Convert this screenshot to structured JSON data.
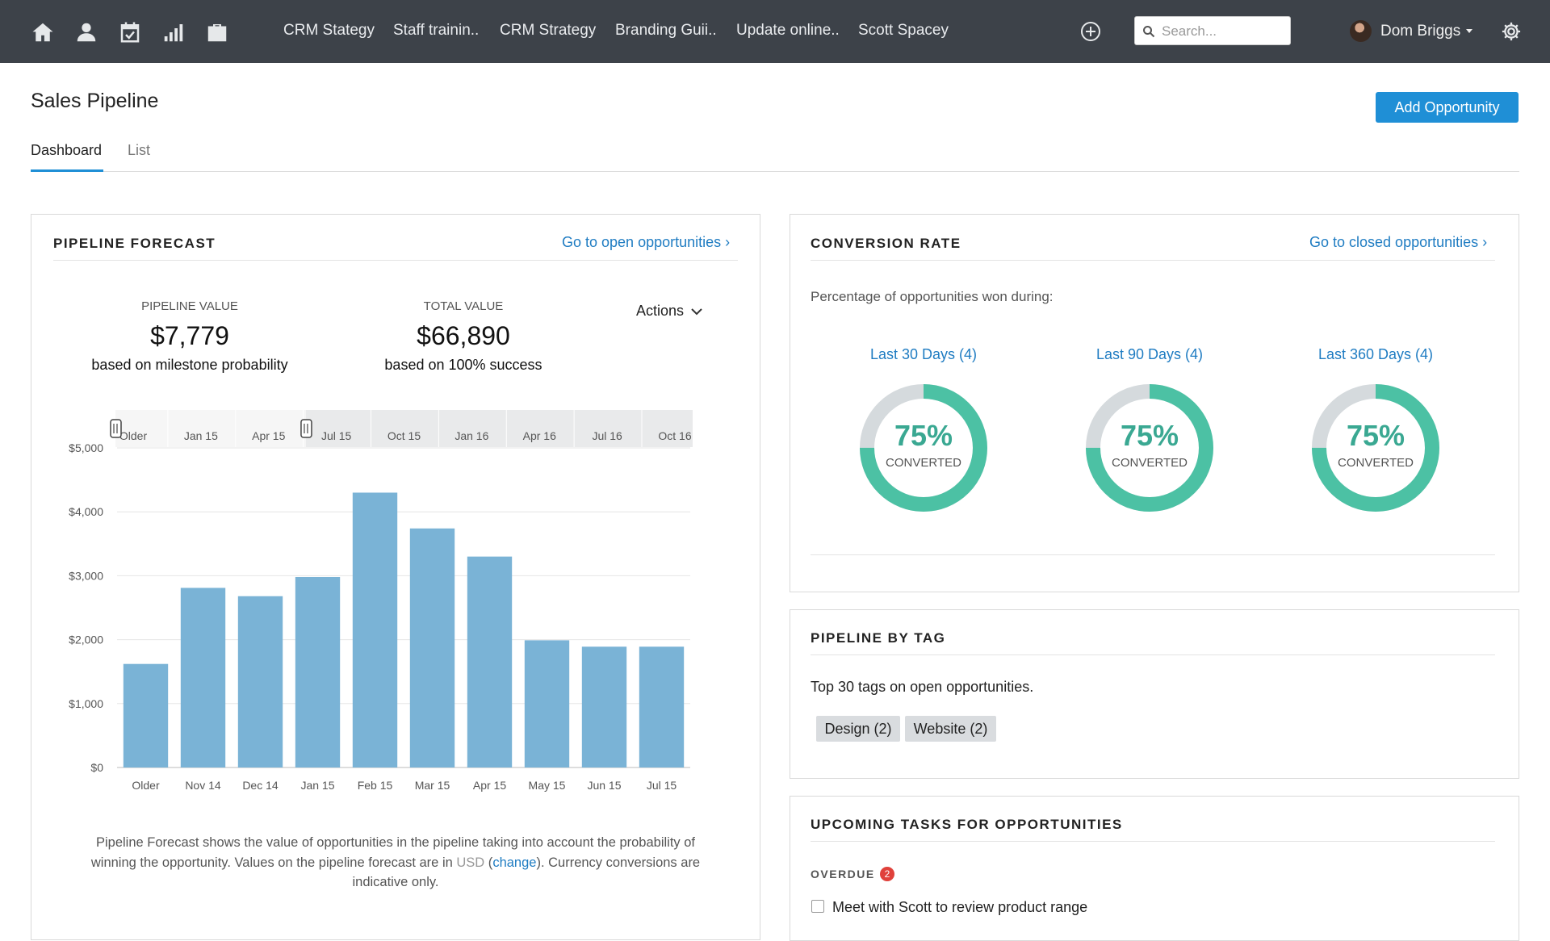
{
  "nav": {
    "icons": [
      "home-icon",
      "contacts-icon",
      "calendar-icon",
      "reports-icon",
      "cases-icon"
    ],
    "open_tabs": [
      "CRM Stategy",
      "Staff trainin..",
      "CRM Strategy",
      "Branding Guii..",
      "Update online..",
      "Scott Spacey"
    ],
    "search_placeholder": "Search...",
    "user_name": "Dom Briggs"
  },
  "header": {
    "title": "Sales Pipeline",
    "add_button": "Add Opportunity",
    "tabs": [
      "Dashboard",
      "List"
    ],
    "active_tab": "Dashboard"
  },
  "pipeline_forecast": {
    "title": "PIPELINE FORECAST",
    "link": "Go to open opportunities ›",
    "pipeline_value_label": "PIPELINE VALUE",
    "pipeline_value": "$7,779",
    "pipeline_value_sub": "based on milestone probability",
    "total_value_label": "TOTAL VALUE",
    "total_value": "$66,890",
    "total_value_sub": "based on 100% success",
    "actions_label": "Actions",
    "footnote_pre": "Pipeline Forecast shows the value of opportunities in the pipeline taking into account the probability of winning the opportunity. Values on the pipeline forecast are in ",
    "footnote_currency": "USD",
    "footnote_open": " (",
    "footnote_change": "change",
    "footnote_post": "). Currency conversions are indicative only."
  },
  "chart_data": {
    "type": "bar",
    "categories": [
      "Older",
      "Nov 14",
      "Dec 14",
      "Jan 15",
      "Feb 15",
      "Mar 15",
      "Apr 15",
      "May 15",
      "Jun 15",
      "Jul 15"
    ],
    "values": [
      1620,
      2810,
      2680,
      2980,
      4300,
      3740,
      3300,
      1990,
      1890,
      1890
    ],
    "ylim": [
      0,
      5000
    ],
    "yticks": [
      "$0",
      "$1,000",
      "$2,000",
      "$3,000",
      "$4,000",
      "$5,000"
    ],
    "ytick_values": [
      0,
      1000,
      2000,
      3000,
      4000,
      5000
    ],
    "navigator_labels": [
      "Older",
      "Jan 15",
      "Apr 15",
      "Jul 15",
      "Oct 15",
      "Jan 16",
      "Apr 16",
      "Jul 16",
      "Oct 16"
    ],
    "navigator_window": [
      0,
      0.33
    ],
    "bar_color": "#7ab3d6",
    "grid": true,
    "title": "",
    "xlabel": "",
    "ylabel": ""
  },
  "conversion_rate": {
    "title": "CONVERSION RATE",
    "link": "Go to closed opportunities ›",
    "description": "Percentage of opportunities won during:",
    "periods": [
      {
        "label": "Last 30 Days (4)",
        "percent": "75%",
        "sub": "CONVERTED",
        "fraction": 0.75
      },
      {
        "label": "Last 90 Days (4)",
        "percent": "75%",
        "sub": "CONVERTED",
        "fraction": 0.75
      },
      {
        "label": "Last 360 Days (4)",
        "percent": "75%",
        "sub": "CONVERTED",
        "fraction": 0.75
      }
    ],
    "ring_color": "#4cc1a4",
    "track_color": "#d5dadd"
  },
  "pipeline_by_tag": {
    "title": "PIPELINE BY TAG",
    "description": "Top 30 tags on open opportunities.",
    "tags": [
      "Design (2)",
      "Website (2)"
    ]
  },
  "upcoming_tasks": {
    "title": "UPCOMING TASKS FOR OPPORTUNITIES",
    "overdue_label": "OVERDUE",
    "overdue_count": "2",
    "tasks": [
      "Meet with Scott to review product range"
    ]
  },
  "colors": {
    "topbar": "#3d4249",
    "accent": "#1f8fd6",
    "link": "#1f7cc2"
  }
}
